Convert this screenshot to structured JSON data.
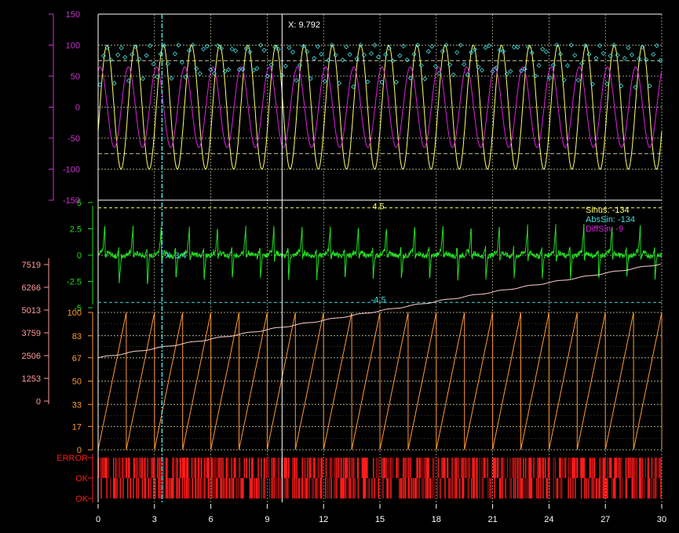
{
  "cursor": {
    "label": "X: 9.792",
    "x": 9.792
  },
  "colors": {
    "background": "#000000",
    "grid": "#c8c8a0",
    "frame": "#ffffff",
    "sinus": "#ffff66",
    "abssin": "#44dddd",
    "diffsin": "#dd22dd",
    "derivative": "#22dd22",
    "sawtooth": "#ff9933",
    "cumulative": "#ffd0d0",
    "status": "#ff1a1a",
    "axis_left_top": "#cc33cc",
    "axis_left_mid": "#ff9999",
    "axis_mid": "#22dd22",
    "axis_saw": "#ff9933",
    "axis_status": "#ff1a1a"
  },
  "x_axis": {
    "min": 0,
    "max": 30,
    "ticks": [
      "0",
      "3",
      "6",
      "9",
      "12",
      "15",
      "18",
      "21",
      "24",
      "27",
      "30"
    ]
  },
  "legend": [
    {
      "label": "Sinus: -134",
      "color": "#ffff66"
    },
    {
      "label": "AbsSin: -134",
      "color": "#44dddd"
    },
    {
      "label": "DiffSin: -9",
      "color": "#dd22dd"
    }
  ],
  "chart_data": [
    {
      "type": "line",
      "series": [
        {
          "name": "Sinus",
          "function": "100*sin(2*pi*x/1.5 - 0.4)",
          "range": [
            -100,
            100
          ]
        },
        {
          "name": "AbsSin",
          "style": "scatter",
          "range": [
            0,
            100
          ]
        },
        {
          "name": "DiffSin",
          "function": "65*sin(2*pi*x/1.5 + 1.1)",
          "range": [
            -65,
            65
          ]
        }
      ],
      "ylim": [
        -150,
        150
      ],
      "yticks": [
        "150",
        "100",
        "50",
        "0",
        "-50",
        "-100",
        "-150"
      ],
      "limit_lines": [
        75,
        -75
      ],
      "grid": true
    },
    {
      "type": "line",
      "series": [
        {
          "name": "derivative",
          "range": [
            -2.8,
            2.8
          ]
        }
      ],
      "ylim": [
        -5,
        5
      ],
      "yticks": [
        "5",
        "2.5",
        "0",
        "-2.5",
        "-5"
      ],
      "limit_lines": [
        {
          "value": 4.5,
          "label": "4.5"
        },
        {
          "value": -4.5,
          "label": "-4.5"
        }
      ],
      "marker": {
        "x": 3.4,
        "y": 0,
        "label": "3.4"
      },
      "grid": true
    },
    {
      "type": "line",
      "series": [
        {
          "name": "sawtooth",
          "period": 1.5,
          "range": [
            0,
            100
          ]
        },
        {
          "name": "cumulative",
          "start": 2380,
          "end": 7560
        }
      ],
      "ylim_saw": [
        0,
        100
      ],
      "yticks_saw": [
        "100",
        "83",
        "67",
        "50",
        "33",
        "17",
        "0"
      ],
      "ylim_cumulative": [
        0,
        7519
      ],
      "yticks_cumulative": [
        "7519",
        "6266",
        "5013",
        "3759",
        "2506",
        "1253",
        "0"
      ],
      "grid": true
    },
    {
      "type": "line",
      "series": [
        {
          "name": "status",
          "style": "digital"
        }
      ],
      "ytick_labels": [
        "ERROR",
        "OK",
        "OK"
      ]
    }
  ]
}
